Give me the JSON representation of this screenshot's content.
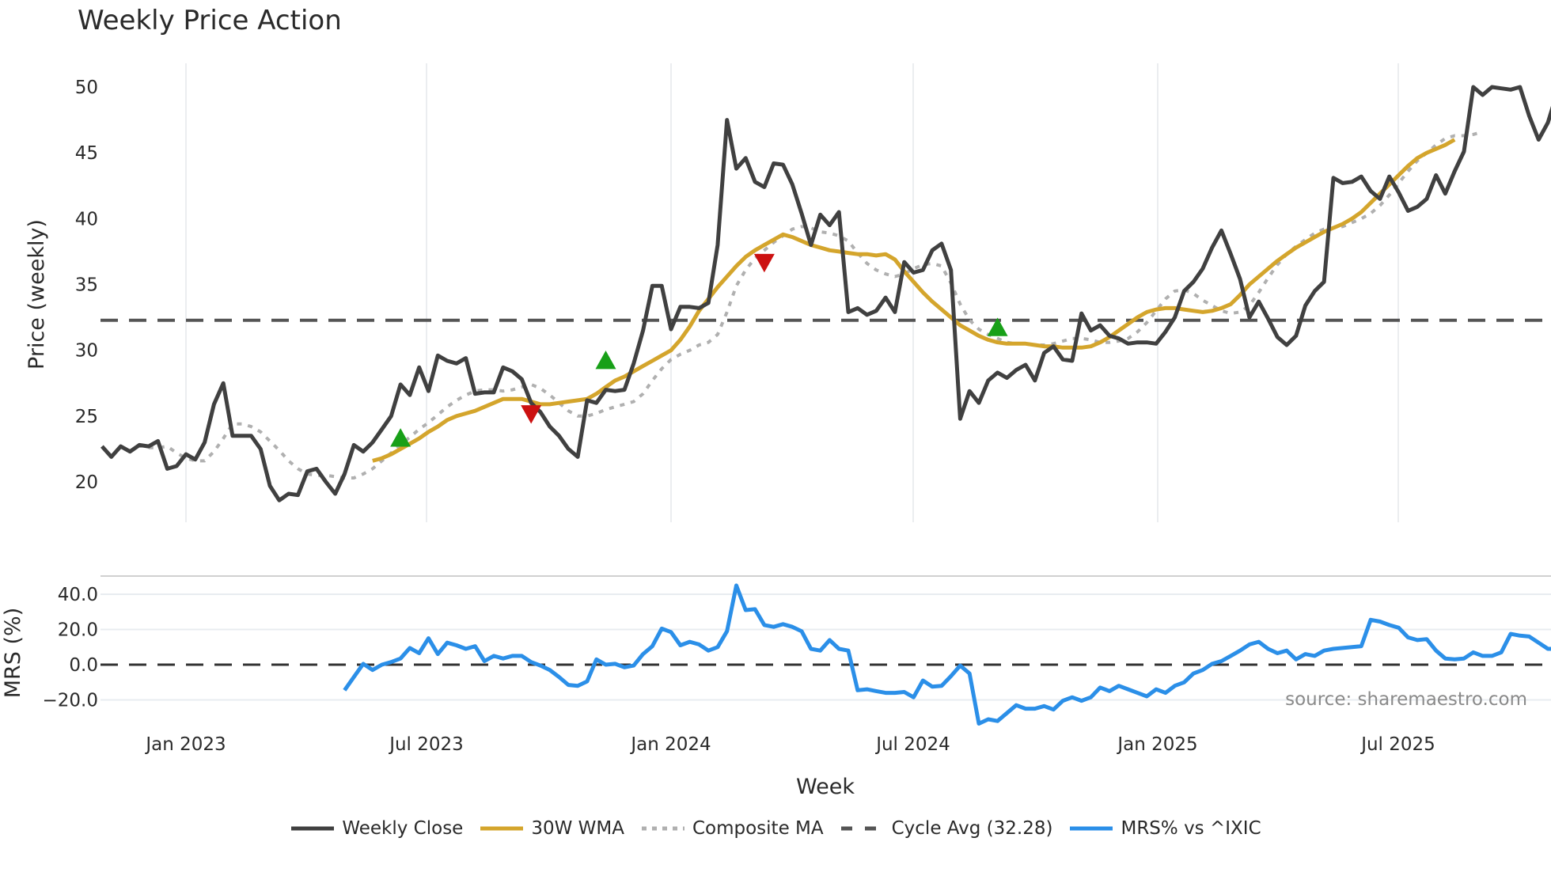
{
  "title": "Weekly Price Action",
  "source_label": "source: sharemaestro.com",
  "price_panel": {
    "ylabel": "Price (weekly)",
    "yticks": [
      "50",
      "45",
      "40",
      "35",
      "30",
      "25",
      "20"
    ]
  },
  "mrs_panel": {
    "ylabel": "MRS (%)",
    "yticks": [
      "40.0",
      "20.0",
      "0.0",
      "−20.0"
    ]
  },
  "xaxis": {
    "title": "Week",
    "ticks": [
      "Jan 2023",
      "Jul 2023",
      "Jan 2024",
      "Jul 2024",
      "Jan 2025",
      "Jul 2025"
    ]
  },
  "legend": [
    {
      "label": "Weekly Close",
      "color": "#404040",
      "style": "solid"
    },
    {
      "label": "30W WMA",
      "color": "#d4a52c",
      "style": "solid"
    },
    {
      "label": "Composite MA",
      "color": "#b0b0b0",
      "style": "dotted"
    },
    {
      "label": "Cycle Avg (32.28)",
      "color": "#555555",
      "style": "dashed"
    },
    {
      "label": "MRS% vs ^IXIC",
      "color": "#2b8fe8",
      "style": "solid"
    }
  ],
  "chart_data": [
    {
      "type": "line",
      "title": "Weekly Price Action",
      "xlabel": "Week",
      "ylabel": "Price (weekly)",
      "ylim": [
        17,
        52
      ],
      "xticks": [
        "Jan 2023",
        "Jul 2023",
        "Jan 2024",
        "Jul 2024",
        "Jan 2025",
        "Jul 2025"
      ],
      "grid": "vertical",
      "legend_position": "bottom",
      "cycle_avg": 32.28,
      "series": [
        {
          "name": "Weekly Close",
          "color": "#404040",
          "start_week": -9,
          "values": [
            22.7,
            21.9,
            22.7,
            22.3,
            22.8,
            22.7,
            23.1,
            21.0,
            21.2,
            22.1,
            21.7,
            23.0,
            25.9,
            27.5,
            23.5,
            23.5,
            23.5,
            22.5,
            19.7,
            18.6,
            19.1,
            19.0,
            20.8,
            21.0,
            20.0,
            19.1,
            20.6,
            22.8,
            22.3,
            23.0,
            24.0,
            25.0,
            27.4,
            26.6,
            28.7,
            26.9,
            29.6,
            29.2,
            29.0,
            29.4,
            26.7,
            26.8,
            26.8,
            28.7,
            28.4,
            27.8,
            26.0,
            25.3,
            24.2,
            23.5,
            22.5,
            21.9,
            26.2,
            26.0,
            27.0,
            26.9,
            27.0,
            29.0,
            31.5,
            34.9,
            34.9,
            31.6,
            33.3,
            33.3,
            33.2,
            33.6,
            38.0,
            47.5,
            43.8,
            44.6,
            42.8,
            42.4,
            44.2,
            44.1,
            42.6,
            40.4,
            38.0,
            40.3,
            39.5,
            40.5,
            32.9,
            33.2,
            32.7,
            33.0,
            34.0,
            32.9,
            36.7,
            35.9,
            36.1,
            37.6,
            38.1,
            36.1,
            24.8,
            26.9,
            26.0,
            27.7,
            28.3,
            27.9,
            28.5,
            28.9,
            27.7,
            29.8,
            30.3,
            29.3,
            29.2,
            32.8,
            31.5,
            31.9,
            31.1,
            30.9,
            30.5,
            30.6,
            30.6,
            30.5,
            31.4,
            32.5,
            34.5,
            35.2,
            36.2,
            37.8,
            39.1,
            37.3,
            35.4,
            32.5,
            33.7,
            32.4,
            31.0,
            30.4,
            31.1,
            33.4,
            34.5,
            35.2,
            43.1,
            42.7,
            42.8,
            43.2,
            42.1,
            41.5,
            43.2,
            42.0,
            40.6,
            40.9,
            41.5,
            43.3,
            41.9,
            43.6,
            45.1,
            50.0,
            49.4,
            50.0,
            49.9,
            49.8,
            50.0,
            47.8,
            46.0,
            47.3,
            49.6
          ]
        },
        {
          "name": "30W WMA",
          "color": "#d4a52c",
          "start_week": 20,
          "values": [
            21.6,
            21.8,
            22.1,
            22.5,
            22.9,
            23.3,
            23.8,
            24.2,
            24.7,
            25.0,
            25.2,
            25.4,
            25.7,
            26.0,
            26.3,
            26.3,
            26.3,
            26.1,
            25.9,
            25.9,
            26.0,
            26.1,
            26.2,
            26.3,
            26.7,
            27.2,
            27.7,
            28.0,
            28.4,
            28.8,
            29.2,
            29.6,
            30.0,
            30.8,
            31.8,
            33.0,
            33.9,
            34.8,
            35.6,
            36.4,
            37.1,
            37.6,
            38.0,
            38.4,
            38.8,
            38.6,
            38.3,
            38.0,
            37.8,
            37.6,
            37.5,
            37.4,
            37.3,
            37.3,
            37.2,
            37.3,
            36.9,
            36.0,
            35.2,
            34.4,
            33.7,
            33.1,
            32.5,
            31.9,
            31.5,
            31.1,
            30.8,
            30.6,
            30.5,
            30.5,
            30.5,
            30.4,
            30.3,
            30.3,
            30.2,
            30.2,
            30.2,
            30.3,
            30.6,
            31.0,
            31.5,
            32.0,
            32.5,
            32.9,
            33.1,
            33.2,
            33.2,
            33.1,
            33.0,
            32.9,
            33.0,
            33.2,
            33.5,
            34.2,
            35.0,
            35.6,
            36.2,
            36.8,
            37.3,
            37.8,
            38.2,
            38.6,
            39.0,
            39.3,
            39.6,
            40.0,
            40.5,
            41.2,
            41.9,
            42.6,
            43.3,
            44.0,
            44.6,
            45.0,
            45.3,
            45.6,
            46.0
          ]
        },
        {
          "name": "Composite MA",
          "color": "#b0b0b0",
          "start_week": -4,
          "values": [
            22.6,
            22.6,
            22.7,
            22.2,
            21.8,
            21.6,
            21.6,
            22.3,
            23.3,
            24.4,
            24.4,
            24.2,
            23.8,
            23.1,
            22.4,
            21.6,
            21.0,
            20.6,
            20.5,
            20.5,
            20.4,
            20.3,
            20.3,
            20.6,
            21.0,
            21.6,
            22.2,
            22.8,
            23.4,
            24.0,
            24.5,
            25.1,
            25.7,
            26.2,
            26.6,
            26.9,
            27.0,
            27.0,
            26.9,
            27.0,
            27.2,
            27.4,
            27.1,
            26.6,
            26.0,
            25.4,
            25.0,
            25.0,
            25.2,
            25.5,
            25.7,
            25.9,
            26.1,
            26.7,
            27.7,
            28.6,
            29.3,
            29.7,
            30.0,
            30.4,
            30.6,
            31.2,
            32.9,
            34.9,
            36.1,
            37.0,
            37.6,
            38.2,
            38.7,
            39.2,
            39.4,
            39.3,
            39.0,
            38.9,
            38.7,
            38.3,
            37.4,
            36.6,
            36.1,
            35.8,
            35.6,
            35.8,
            36.2,
            36.5,
            36.6,
            36.4,
            35.1,
            33.5,
            32.3,
            31.6,
            31.2,
            30.9,
            30.6,
            30.5,
            30.5,
            30.4,
            30.4,
            30.5,
            30.7,
            30.9,
            30.9,
            30.8,
            30.6,
            30.6,
            30.7,
            30.9,
            31.4,
            32.1,
            33.0,
            33.9,
            34.5,
            34.6,
            34.3,
            33.8,
            33.4,
            33.0,
            32.8,
            32.9,
            33.4,
            34.4,
            35.5,
            36.5,
            37.3,
            37.9,
            38.4,
            38.9,
            39.2,
            39.3,
            39.4,
            39.7,
            40.0,
            40.4,
            41.0,
            41.8,
            42.7,
            43.6,
            44.4,
            45.0,
            45.6,
            46.1,
            46.3,
            46.3,
            46.4,
            46.6
          ]
        }
      ],
      "markers": [
        {
          "type": "buy",
          "shape": "triangle-up",
          "color": "#18a018",
          "week": 23,
          "value": 23.3
        },
        {
          "type": "sell",
          "shape": "triangle-down",
          "color": "#cc1111",
          "week": 37,
          "value": 25.2
        },
        {
          "type": "buy",
          "shape": "triangle-up",
          "color": "#18a018",
          "week": 45,
          "value": 29.2
        },
        {
          "type": "sell",
          "shape": "triangle-down",
          "color": "#cc1111",
          "week": 62,
          "value": 36.7
        },
        {
          "type": "buy",
          "shape": "triangle-up",
          "color": "#18a018",
          "week": 87,
          "value": 31.7
        }
      ]
    },
    {
      "type": "line",
      "title": "",
      "xlabel": "Week",
      "ylabel": "MRS (%)",
      "ylim": [
        -36,
        52
      ],
      "yticks": [
        40,
        20,
        0,
        -20
      ],
      "reference_line": 0,
      "series": [
        {
          "name": "MRS% vs ^IXIC",
          "color": "#2b8fe8",
          "start_week": 17,
          "values": [
            -14.5,
            -7,
            0.5,
            -3,
            0,
            1.5,
            3.5,
            9.5,
            6.5,
            15,
            6,
            12.5,
            11,
            9,
            10.5,
            2,
            5,
            3.5,
            5,
            5,
            1.5,
            -0.5,
            -3,
            -7,
            -11.5,
            -12,
            -9.5,
            3,
            0,
            0.5,
            -1.5,
            -0.5,
            6,
            10.5,
            20.5,
            18.5,
            11,
            13,
            11.5,
            8,
            10,
            19,
            45,
            31,
            31.5,
            22.5,
            21.5,
            23,
            21.5,
            19,
            9,
            8,
            14,
            9,
            8,
            -14.5,
            -14,
            -15,
            -16,
            -16,
            -15.5,
            -18.5,
            -9,
            -12.5,
            -12,
            -6.5,
            -0.5,
            -5,
            -33.5,
            -31,
            -32,
            -27.5,
            -23,
            -25,
            -25,
            -23.5,
            -25.5,
            -20.5,
            -18.5,
            -20.5,
            -18.5,
            -13,
            -15,
            -12,
            -14,
            -16,
            -18,
            -14,
            -16,
            -12,
            -10,
            -5,
            -3,
            0.5,
            2,
            5,
            8,
            11.5,
            13,
            9,
            6.5,
            8,
            3,
            6,
            5,
            8,
            9,
            9.5,
            10,
            10.5,
            25.5,
            24.5,
            22.5,
            21,
            15.5,
            14,
            14.5,
            8,
            3.5,
            3,
            3.5,
            7,
            5,
            5,
            7,
            17.5,
            16.5,
            16,
            12.5,
            9,
            9,
            2.5,
            0.5,
            1,
            4
          ]
        }
      ]
    }
  ]
}
